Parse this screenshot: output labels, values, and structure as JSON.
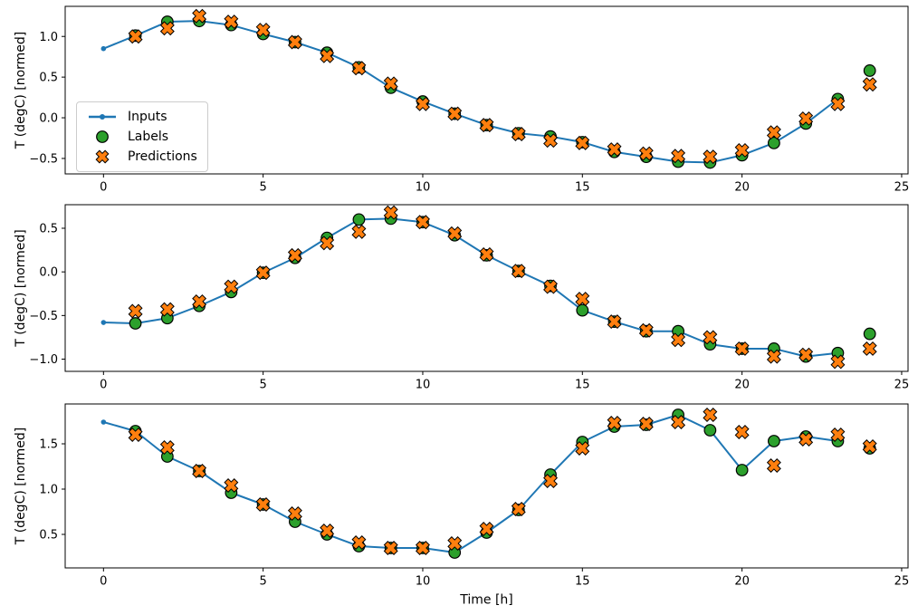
{
  "figure": {
    "xlabel": "Time [h]",
    "ylabel": "T (degC) [normed]",
    "colors": {
      "inputs": "#1f77b4",
      "labels": "#2ca02c",
      "predictions": "#ff7f0e",
      "marker_edge": "#000000",
      "background": "#ffffff",
      "legend_border": "#cccccc"
    },
    "legend": {
      "items": [
        {
          "id": "inputs",
          "label": "Inputs",
          "marker": "line-dot"
        },
        {
          "id": "labels",
          "label": "Labels",
          "marker": "circle"
        },
        {
          "id": "predictions",
          "label": "Predictions",
          "marker": "X"
        }
      ],
      "position": "upper-left-of-first-subplot"
    }
  },
  "chart_data": [
    {
      "type": "line",
      "ylabel": "T (degC) [normed]",
      "xlabel": "",
      "xlim": [
        -1.2,
        25.2
      ],
      "ylim": [
        -0.69,
        1.37
      ],
      "xticks": [
        0,
        5,
        10,
        15,
        20,
        25
      ],
      "yticks": [
        -0.5,
        0.0,
        0.5,
        1.0
      ],
      "grid": false,
      "series": [
        {
          "name": "Inputs",
          "type": "line",
          "marker": "dot",
          "color": "#1f77b4",
          "x": [
            0,
            1,
            2,
            3,
            4,
            5,
            6,
            7,
            8,
            9,
            10,
            11,
            12,
            13,
            14,
            15,
            16,
            17,
            18,
            19,
            20,
            21,
            22,
            23
          ],
          "y": [
            0.85,
            1.01,
            1.18,
            1.19,
            1.14,
            1.03,
            0.93,
            0.8,
            0.62,
            0.37,
            0.2,
            0.05,
            -0.09,
            -0.19,
            -0.23,
            -0.3,
            -0.42,
            -0.48,
            -0.54,
            -0.55,
            -0.46,
            -0.31,
            -0.07,
            0.23
          ]
        },
        {
          "name": "Labels",
          "type": "scatter",
          "marker": "circle",
          "color": "#2ca02c",
          "edge": "#000000",
          "x": [
            1,
            2,
            3,
            4,
            5,
            6,
            7,
            8,
            9,
            10,
            11,
            12,
            13,
            14,
            15,
            16,
            17,
            18,
            19,
            20,
            21,
            22,
            23,
            24
          ],
          "y": [
            1.01,
            1.18,
            1.19,
            1.14,
            1.03,
            0.93,
            0.8,
            0.62,
            0.37,
            0.2,
            0.05,
            -0.09,
            -0.19,
            -0.23,
            -0.3,
            -0.42,
            -0.48,
            -0.54,
            -0.55,
            -0.46,
            -0.31,
            -0.07,
            0.23,
            0.58
          ]
        },
        {
          "name": "Predictions",
          "type": "scatter",
          "marker": "X",
          "color": "#ff7f0e",
          "edge": "#000000",
          "x": [
            1,
            2,
            3,
            4,
            5,
            6,
            7,
            8,
            9,
            10,
            11,
            12,
            13,
            14,
            15,
            16,
            17,
            18,
            19,
            20,
            21,
            22,
            23,
            24
          ],
          "y": [
            1.0,
            1.1,
            1.25,
            1.18,
            1.08,
            0.93,
            0.76,
            0.61,
            0.42,
            0.17,
            0.05,
            -0.09,
            -0.2,
            -0.28,
            -0.31,
            -0.39,
            -0.44,
            -0.47,
            -0.48,
            -0.4,
            -0.18,
            -0.01,
            0.17,
            0.41
          ]
        }
      ]
    },
    {
      "type": "line",
      "ylabel": "T (degC) [normed]",
      "xlabel": "",
      "xlim": [
        -1.2,
        25.2
      ],
      "ylim": [
        -1.14,
        0.77
      ],
      "xticks": [
        0,
        5,
        10,
        15,
        20,
        25
      ],
      "yticks": [
        -1.0,
        -0.5,
        0.0,
        0.5
      ],
      "grid": false,
      "series": [
        {
          "name": "Inputs",
          "type": "line",
          "marker": "dot",
          "color": "#1f77b4",
          "x": [
            0,
            1,
            2,
            3,
            4,
            5,
            6,
            7,
            8,
            9,
            10,
            11,
            12,
            13,
            14,
            15,
            16,
            17,
            18,
            19,
            20,
            21,
            22,
            23
          ],
          "y": [
            -0.58,
            -0.59,
            -0.53,
            -0.39,
            -0.23,
            -0.01,
            0.16,
            0.39,
            0.6,
            0.61,
            0.57,
            0.42,
            0.19,
            0.01,
            -0.16,
            -0.44,
            -0.57,
            -0.68,
            -0.68,
            -0.83,
            -0.88,
            -0.88,
            -0.97,
            -0.93
          ]
        },
        {
          "name": "Labels",
          "type": "scatter",
          "marker": "circle",
          "color": "#2ca02c",
          "edge": "#000000",
          "x": [
            1,
            2,
            3,
            4,
            5,
            6,
            7,
            8,
            9,
            10,
            11,
            12,
            13,
            14,
            15,
            16,
            17,
            18,
            19,
            20,
            21,
            22,
            23,
            24
          ],
          "y": [
            -0.59,
            -0.53,
            -0.39,
            -0.23,
            -0.01,
            0.16,
            0.39,
            0.6,
            0.61,
            0.57,
            0.42,
            0.19,
            0.01,
            -0.16,
            -0.44,
            -0.57,
            -0.68,
            -0.68,
            -0.83,
            -0.88,
            -0.88,
            -0.97,
            -0.93,
            -0.71
          ]
        },
        {
          "name": "Predictions",
          "type": "scatter",
          "marker": "X",
          "color": "#ff7f0e",
          "edge": "#000000",
          "x": [
            1,
            2,
            3,
            4,
            5,
            6,
            7,
            8,
            9,
            10,
            11,
            12,
            13,
            14,
            15,
            16,
            17,
            18,
            19,
            20,
            21,
            22,
            23,
            24
          ],
          "y": [
            -0.45,
            -0.43,
            -0.34,
            -0.17,
            -0.01,
            0.19,
            0.33,
            0.46,
            0.68,
            0.57,
            0.44,
            0.2,
            0.01,
            -0.17,
            -0.31,
            -0.57,
            -0.67,
            -0.78,
            -0.75,
            -0.88,
            -0.97,
            -0.95,
            -1.03,
            -0.88
          ]
        }
      ]
    },
    {
      "type": "line",
      "ylabel": "T (degC) [normed]",
      "xlabel": "Time [h]",
      "xlim": [
        -1.2,
        25.2
      ],
      "ylim": [
        0.13,
        1.94
      ],
      "xticks": [
        0,
        5,
        10,
        15,
        20,
        25
      ],
      "yticks": [
        0.5,
        1.0,
        1.5
      ],
      "grid": false,
      "series": [
        {
          "name": "Inputs",
          "type": "line",
          "marker": "dot",
          "color": "#1f77b4",
          "x": [
            0,
            1,
            2,
            3,
            4,
            5,
            6,
            7,
            8,
            9,
            10,
            11,
            12,
            13,
            14,
            15,
            16,
            17,
            18,
            19,
            20,
            21,
            22,
            23
          ],
          "y": [
            1.74,
            1.64,
            1.36,
            1.2,
            0.96,
            0.83,
            0.64,
            0.5,
            0.37,
            0.35,
            0.35,
            0.3,
            0.52,
            0.77,
            1.16,
            1.52,
            1.69,
            1.71,
            1.82,
            1.65,
            1.21,
            1.53,
            1.58,
            1.53
          ]
        },
        {
          "name": "Labels",
          "type": "scatter",
          "marker": "circle",
          "color": "#2ca02c",
          "edge": "#000000",
          "x": [
            1,
            2,
            3,
            4,
            5,
            6,
            7,
            8,
            9,
            10,
            11,
            12,
            13,
            14,
            15,
            16,
            17,
            18,
            19,
            20,
            21,
            22,
            23,
            24
          ],
          "y": [
            1.64,
            1.36,
            1.2,
            0.96,
            0.83,
            0.64,
            0.5,
            0.37,
            0.35,
            0.35,
            0.3,
            0.52,
            0.77,
            1.16,
            1.52,
            1.69,
            1.71,
            1.82,
            1.65,
            1.21,
            1.53,
            1.58,
            1.53,
            1.45
          ]
        },
        {
          "name": "Predictions",
          "type": "scatter",
          "marker": "X",
          "color": "#ff7f0e",
          "edge": "#000000",
          "x": [
            1,
            2,
            3,
            4,
            5,
            6,
            7,
            8,
            9,
            10,
            11,
            12,
            13,
            14,
            15,
            16,
            17,
            18,
            19,
            20,
            21,
            22,
            23,
            24
          ],
          "y": [
            1.6,
            1.46,
            1.2,
            1.04,
            0.83,
            0.73,
            0.54,
            0.41,
            0.35,
            0.35,
            0.4,
            0.56,
            0.78,
            1.09,
            1.45,
            1.73,
            1.72,
            1.74,
            1.82,
            1.63,
            1.26,
            1.55,
            1.6,
            1.47
          ]
        }
      ]
    }
  ]
}
